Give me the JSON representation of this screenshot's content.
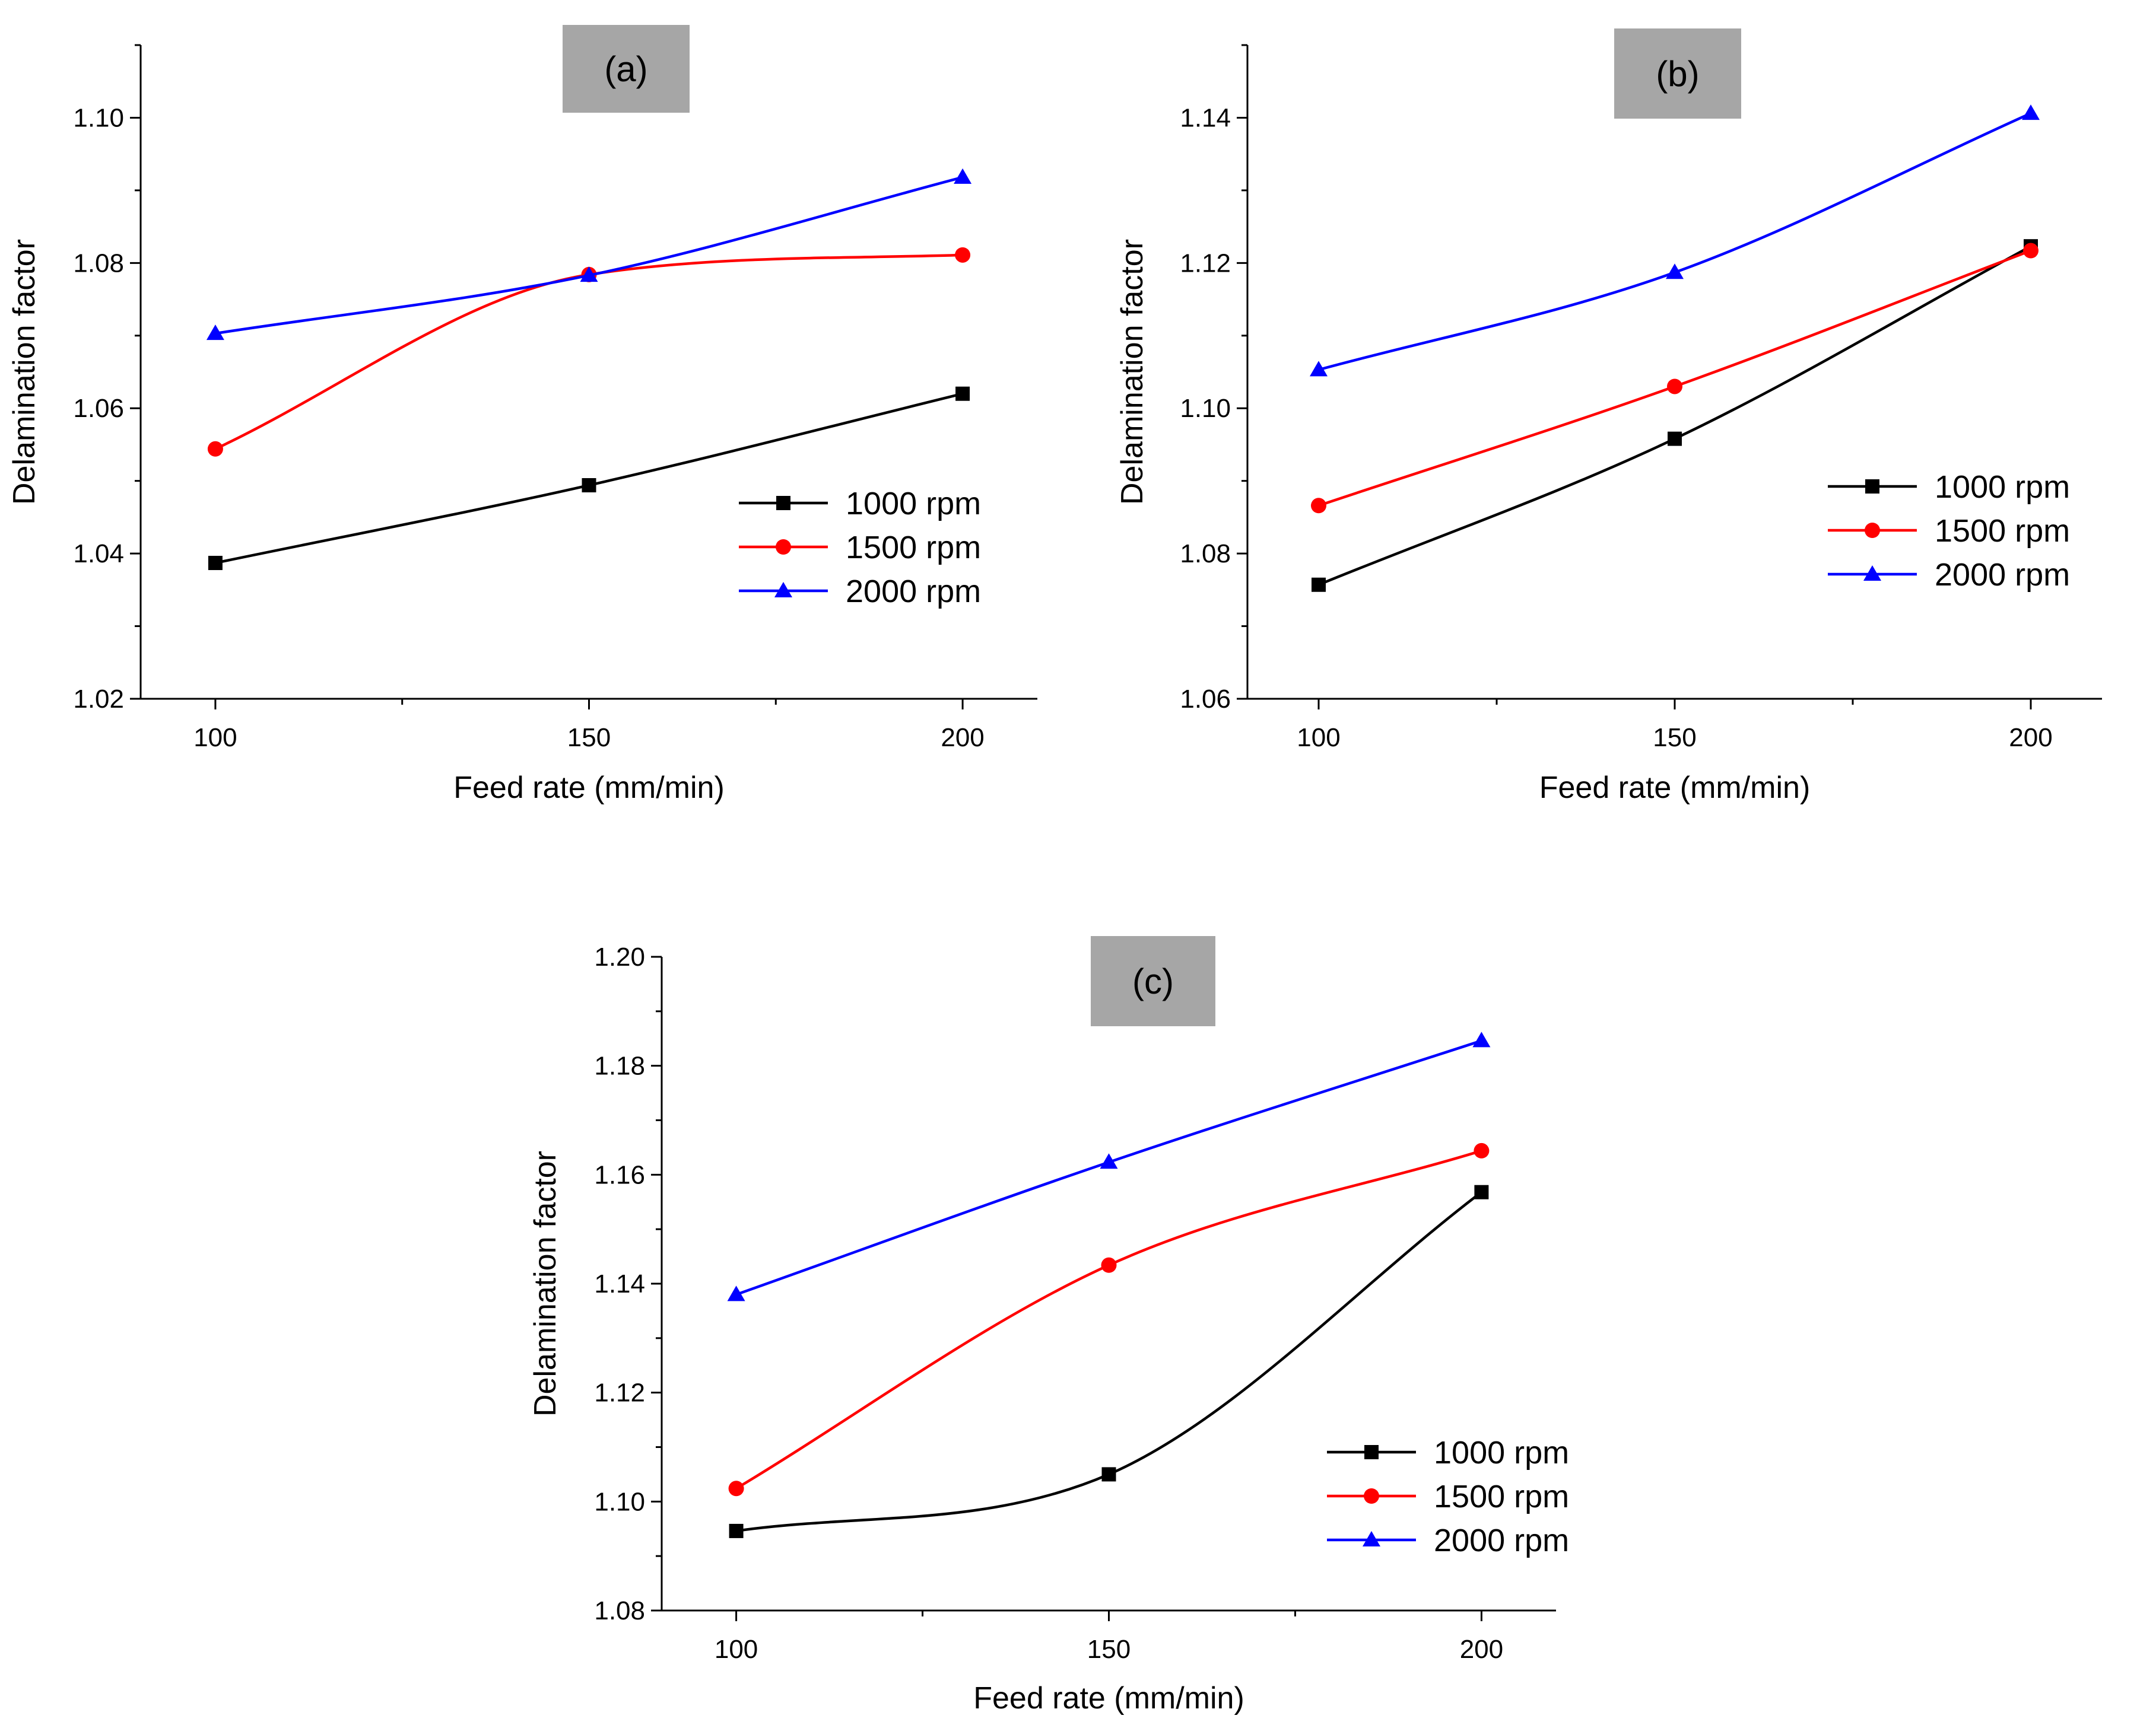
{
  "figure_description": "Delamination factor vs feed rate at three spindle speeds, three panels",
  "chart_data": [
    {
      "panel_label": "(a)",
      "type": "line",
      "xlabel": "Feed rate (mm/min)",
      "ylabel": "Delamination factor",
      "xlim": [
        90,
        210
      ],
      "ylim": [
        1.02,
        1.11
      ],
      "x_ticks": [
        100,
        150,
        200
      ],
      "y_ticks": [
        1.02,
        1.04,
        1.06,
        1.08,
        1.1
      ],
      "y_tick_labels": [
        "1.02",
        "1.04",
        "1.06",
        "1.08",
        "1.10"
      ],
      "x": [
        100,
        150,
        200
      ],
      "legend_position": "center-right",
      "series": [
        {
          "name": "1000 rpm",
          "values": [
            1.0387,
            1.0494,
            1.062
          ],
          "color": "#000000",
          "marker": "square"
        },
        {
          "name": "1500 rpm",
          "values": [
            1.0544,
            1.0784,
            1.0811
          ],
          "color": "#ff0000",
          "marker": "circle"
        },
        {
          "name": "2000 rpm",
          "values": [
            1.0703,
            1.0783,
            1.0918
          ],
          "color": "#0000ff",
          "marker": "triangle"
        }
      ]
    },
    {
      "panel_label": "(b)",
      "type": "line",
      "xlabel": "Feed rate (mm/min)",
      "ylabel": "Delamination factor",
      "xlim": [
        90,
        210
      ],
      "ylim": [
        1.06,
        1.15
      ],
      "x_ticks": [
        100,
        150,
        200
      ],
      "y_ticks": [
        1.06,
        1.08,
        1.1,
        1.12,
        1.14
      ],
      "y_tick_labels": [
        "1.06",
        "1.08",
        "1.10",
        "1.12",
        "1.14"
      ],
      "x": [
        100,
        150,
        200
      ],
      "legend_position": "center-right",
      "series": [
        {
          "name": "1000 rpm",
          "values": [
            1.0757,
            1.0958,
            1.1223
          ],
          "color": "#000000",
          "marker": "square"
        },
        {
          "name": "1500 rpm",
          "values": [
            1.0866,
            1.103,
            1.1217
          ],
          "color": "#ff0000",
          "marker": "circle"
        },
        {
          "name": "2000 rpm",
          "values": [
            1.1053,
            1.1187,
            1.1406
          ],
          "color": "#0000ff",
          "marker": "triangle"
        }
      ]
    },
    {
      "panel_label": "(c)",
      "type": "line",
      "xlabel": "Feed rate (mm/min)",
      "ylabel": "Delamination factor",
      "xlim": [
        90,
        210
      ],
      "ylim": [
        1.08,
        1.2
      ],
      "x_ticks": [
        100,
        150,
        200
      ],
      "y_ticks": [
        1.08,
        1.1,
        1.12,
        1.14,
        1.16,
        1.18,
        1.2
      ],
      "y_tick_labels": [
        "1.08",
        "1.10",
        "1.12",
        "1.14",
        "1.16",
        "1.18",
        "1.20"
      ],
      "x": [
        100,
        150,
        200
      ],
      "legend_position": "bottom-right",
      "series": [
        {
          "name": "1000 rpm",
          "values": [
            1.0946,
            1.105,
            1.1568
          ],
          "color": "#000000",
          "marker": "square"
        },
        {
          "name": "1500 rpm",
          "values": [
            1.1024,
            1.1434,
            1.1644
          ],
          "color": "#ff0000",
          "marker": "circle"
        },
        {
          "name": "2000 rpm",
          "values": [
            1.138,
            1.1623,
            1.1846
          ],
          "color": "#0000ff",
          "marker": "triangle"
        }
      ]
    }
  ]
}
